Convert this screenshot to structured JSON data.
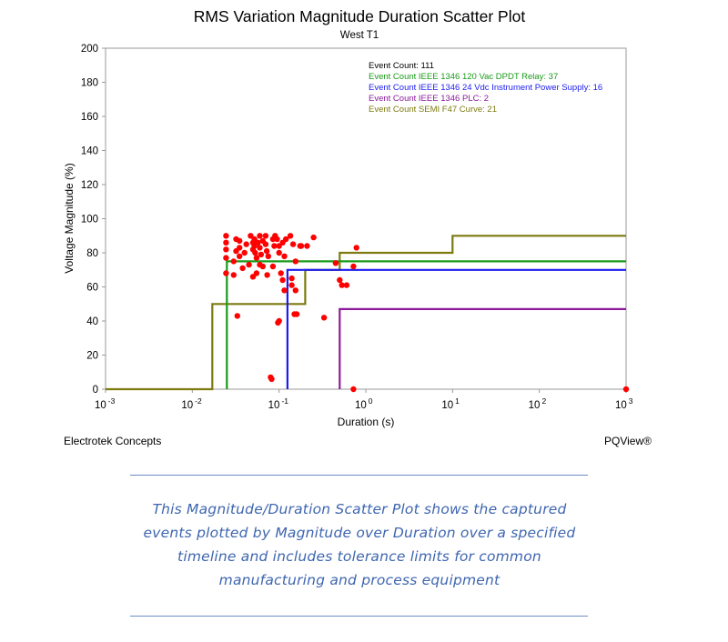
{
  "chart_data": {
    "type": "scatter",
    "title": "RMS Variation Magnitude Duration Scatter Plot",
    "subtitle": "West T1",
    "xlabel": "Duration (s)",
    "ylabel": "Voltage Magnitude (%)",
    "x_scale": "log",
    "xlim": [
      0.001,
      1000
    ],
    "ylim": [
      0,
      200
    ],
    "x_ticks": [
      {
        "base": "10",
        "exp": "-3"
      },
      {
        "base": "10",
        "exp": "-2"
      },
      {
        "base": "10",
        "exp": "-1"
      },
      {
        "base": "10",
        "exp": "0"
      },
      {
        "base": "10",
        "exp": "1"
      },
      {
        "base": "10",
        "exp": "2"
      },
      {
        "base": "10",
        "exp": "3"
      }
    ],
    "y_ticks": [
      "0",
      "20",
      "40",
      "60",
      "80",
      "100",
      "120",
      "140",
      "160",
      "180",
      "200"
    ],
    "grid": false,
    "legend_position": "top-right",
    "legend": [
      {
        "text": "Event Count: 111",
        "color": "#000000"
      },
      {
        "text": "Event Count IEEE 1346 120 Vac DPDT Relay: 37",
        "color": "#1a9a1a"
      },
      {
        "text": "Event Count IEEE 1346 24 Vdc Instrument Power Supply: 16",
        "color": "#1c1cf0"
      },
      {
        "text": "Event Count IEEE 1346 PLC: 2",
        "color": "#8b1a9b"
      },
      {
        "text": "Event Count SEMI F47 Curve: 21",
        "color": "#7d7a10"
      }
    ],
    "curves": [
      {
        "color": "#7d7a10",
        "points": [
          [
            0.001,
            0
          ],
          [
            0.017,
            0
          ],
          [
            0.017,
            50
          ],
          [
            0.2,
            50
          ],
          [
            0.2,
            70
          ],
          [
            0.5,
            70
          ],
          [
            0.5,
            80
          ],
          [
            10,
            80
          ],
          [
            10,
            90
          ],
          [
            1000,
            90
          ]
        ]
      },
      {
        "color": "#1a9a1a",
        "points": [
          [
            0.025,
            0
          ],
          [
            0.025,
            75
          ],
          [
            1000,
            75
          ]
        ]
      },
      {
        "color": "#1c1cf0",
        "points": [
          [
            0.125,
            0
          ],
          [
            0.125,
            70
          ],
          [
            1000,
            70
          ]
        ]
      },
      {
        "color": "#8b1a9b",
        "points": [
          [
            0.5,
            0
          ],
          [
            0.5,
            47
          ],
          [
            1000,
            47
          ]
        ]
      }
    ],
    "series": [
      {
        "color": "#ff0000",
        "points": [
          [
            0.0245,
            90
          ],
          [
            0.0245,
            86
          ],
          [
            0.0245,
            82
          ],
          [
            0.0245,
            77
          ],
          [
            0.0245,
            68
          ],
          [
            0.03,
            75
          ],
          [
            0.032,
            88
          ],
          [
            0.032,
            81
          ],
          [
            0.035,
            87
          ],
          [
            0.035,
            83
          ],
          [
            0.035,
            78
          ],
          [
            0.03,
            67
          ],
          [
            0.038,
            71
          ],
          [
            0.033,
            43
          ],
          [
            0.04,
            80
          ],
          [
            0.045,
            73
          ],
          [
            0.042,
            85
          ],
          [
            0.047,
            90
          ],
          [
            0.05,
            86
          ],
          [
            0.05,
            82
          ],
          [
            0.052,
            88
          ],
          [
            0.052,
            84
          ],
          [
            0.053,
            80
          ],
          [
            0.055,
            77
          ],
          [
            0.057,
            86
          ],
          [
            0.06,
            90
          ],
          [
            0.06,
            83
          ],
          [
            0.062,
            79
          ],
          [
            0.065,
            87
          ],
          [
            0.065,
            72
          ],
          [
            0.055,
            68
          ],
          [
            0.05,
            66
          ],
          [
            0.06,
            73
          ],
          [
            0.07,
            90
          ],
          [
            0.07,
            85
          ],
          [
            0.072,
            81
          ],
          [
            0.075,
            78
          ],
          [
            0.073,
            67
          ],
          [
            0.085,
            88
          ],
          [
            0.088,
            84
          ],
          [
            0.085,
            72
          ],
          [
            0.09,
            90
          ],
          [
            0.095,
            88
          ],
          [
            0.1,
            84
          ],
          [
            0.1,
            80
          ],
          [
            0.11,
            86
          ],
          [
            0.115,
            78
          ],
          [
            0.12,
            88
          ],
          [
            0.11,
            64
          ],
          [
            0.115,
            58
          ],
          [
            0.105,
            68
          ],
          [
            0.1,
            40
          ],
          [
            0.097,
            39
          ],
          [
            0.135,
            90
          ],
          [
            0.14,
            65
          ],
          [
            0.14,
            61
          ],
          [
            0.15,
            44
          ],
          [
            0.155,
            58
          ],
          [
            0.16,
            44
          ],
          [
            0.145,
            85
          ],
          [
            0.155,
            75
          ],
          [
            0.175,
            84
          ],
          [
            0.18,
            84
          ],
          [
            0.25,
            89
          ],
          [
            0.21,
            84
          ],
          [
            0.33,
            42
          ],
          [
            0.45,
            74
          ],
          [
            0.5,
            64
          ],
          [
            0.53,
            61
          ],
          [
            0.6,
            61
          ],
          [
            0.72,
            72
          ],
          [
            0.78,
            83
          ],
          [
            0.08,
            7
          ],
          [
            0.082,
            6
          ],
          [
            0.72,
            0
          ],
          [
            1000,
            0
          ]
        ]
      }
    ]
  },
  "footer": {
    "left": "Electrotek Concepts",
    "right": "PQView®"
  },
  "caption": {
    "lines": [
      "This Magnitude/Duration Scatter Plot shows the captured",
      "events plotted by Magnitude over Duration over a specified",
      "timeline and includes tolerance limits for common",
      "manufacturing and process equipment"
    ]
  }
}
